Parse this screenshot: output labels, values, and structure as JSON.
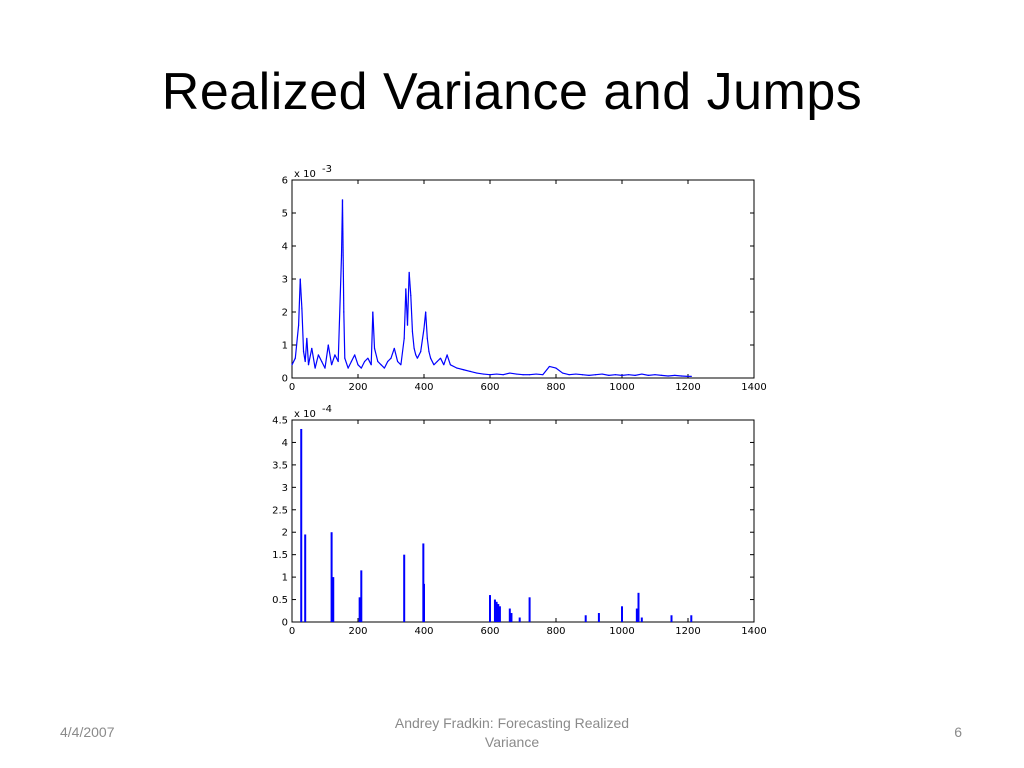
{
  "slide": {
    "title": "Realized Variance and Jumps",
    "footer_date": "4/4/2007",
    "footer_center": "Andrey Fradkin: Forecasting Realized Variance",
    "page_number": "6"
  },
  "colors": {
    "series": "#0000ff",
    "axis": "#000000"
  },
  "chart_data": [
    {
      "type": "line",
      "title": "",
      "xlabel": "",
      "ylabel": "",
      "exponent_label": "x 10",
      "exponent_power": "-3",
      "xlim": [
        0,
        1400
      ],
      "ylim": [
        0,
        6
      ],
      "x_ticks": [
        "0",
        "200",
        "400",
        "600",
        "800",
        "1000",
        "1200",
        "1400"
      ],
      "y_ticks": [
        "0",
        "1",
        "2",
        "3",
        "4",
        "5",
        "6"
      ],
      "grid": false,
      "series": [
        {
          "name": "",
          "x": [
            0,
            10,
            20,
            25,
            30,
            35,
            40,
            45,
            50,
            60,
            70,
            80,
            90,
            100,
            110,
            120,
            130,
            140,
            150,
            153,
            157,
            160,
            170,
            180,
            190,
            200,
            210,
            220,
            230,
            240,
            245,
            250,
            260,
            270,
            280,
            290,
            300,
            310,
            320,
            330,
            340,
            345,
            350,
            355,
            360,
            365,
            370,
            375,
            380,
            390,
            400,
            405,
            410,
            415,
            420,
            430,
            440,
            450,
            460,
            470,
            480,
            500,
            520,
            540,
            560,
            580,
            600,
            620,
            640,
            660,
            680,
            700,
            720,
            740,
            760,
            780,
            800,
            820,
            840,
            860,
            880,
            900,
            920,
            940,
            960,
            980,
            1000,
            1020,
            1040,
            1060,
            1080,
            1100,
            1120,
            1140,
            1160,
            1180,
            1200,
            1210
          ],
          "y": [
            0.4,
            0.6,
            1.6,
            3.0,
            2.1,
            0.8,
            0.5,
            1.2,
            0.4,
            0.9,
            0.3,
            0.7,
            0.5,
            0.3,
            1.0,
            0.4,
            0.7,
            0.5,
            3.7,
            5.4,
            2.0,
            0.6,
            0.3,
            0.5,
            0.7,
            0.4,
            0.3,
            0.5,
            0.6,
            0.4,
            2.0,
            0.9,
            0.5,
            0.4,
            0.3,
            0.5,
            0.6,
            0.9,
            0.5,
            0.4,
            1.2,
            2.7,
            1.6,
            3.2,
            2.5,
            1.4,
            0.9,
            0.7,
            0.6,
            0.8,
            1.5,
            2.0,
            1.2,
            0.8,
            0.6,
            0.4,
            0.5,
            0.6,
            0.4,
            0.7,
            0.4,
            0.3,
            0.25,
            0.2,
            0.15,
            0.12,
            0.1,
            0.12,
            0.1,
            0.15,
            0.12,
            0.1,
            0.1,
            0.12,
            0.1,
            0.35,
            0.3,
            0.15,
            0.1,
            0.12,
            0.1,
            0.08,
            0.1,
            0.12,
            0.08,
            0.1,
            0.08,
            0.1,
            0.08,
            0.12,
            0.08,
            0.1,
            0.08,
            0.06,
            0.08,
            0.06,
            0.05,
            0.05
          ]
        }
      ]
    },
    {
      "type": "bar",
      "title": "",
      "xlabel": "",
      "ylabel": "",
      "exponent_label": "x 10",
      "exponent_power": "-4",
      "xlim": [
        0,
        1400
      ],
      "ylim": [
        0,
        4.5
      ],
      "x_ticks": [
        "0",
        "200",
        "400",
        "600",
        "800",
        "1000",
        "1200",
        "1400"
      ],
      "y_ticks": [
        "0",
        "0.5",
        "1",
        "1.5",
        "2",
        "2.5",
        "3",
        "3.5",
        "4",
        "4.5"
      ],
      "grid": false,
      "series": [
        {
          "name": "",
          "x": [
            28,
            40,
            120,
            125,
            205,
            210,
            340,
            398,
            400,
            600,
            615,
            620,
            625,
            630,
            660,
            665,
            690,
            720,
            890,
            930,
            1000,
            1045,
            1050,
            1060,
            1150,
            1210
          ],
          "y": [
            4.3,
            1.95,
            2.0,
            1.0,
            0.55,
            1.15,
            1.5,
            1.75,
            0.85,
            0.6,
            0.5,
            0.45,
            0.4,
            0.35,
            0.3,
            0.2,
            0.1,
            0.55,
            0.15,
            0.2,
            0.35,
            0.3,
            0.65,
            0.1,
            0.15,
            0.15
          ]
        }
      ]
    }
  ]
}
